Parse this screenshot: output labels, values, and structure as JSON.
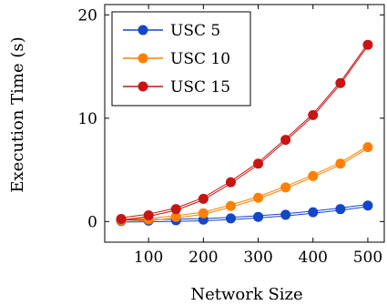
{
  "chart_data": {
    "type": "line",
    "title": "",
    "xlabel": "Network Size",
    "ylabel": "Execution Time (s)",
    "xlim": [
      20,
      530
    ],
    "ylim": [
      -2,
      21
    ],
    "xticks": [
      100,
      200,
      300,
      400,
      500
    ],
    "yticks": [
      0,
      10,
      20
    ],
    "grid": false,
    "legend_position": "top-left",
    "x": [
      50,
      100,
      150,
      200,
      250,
      300,
      350,
      400,
      450,
      500
    ],
    "series": [
      {
        "name": "USC 5",
        "color": "#1446c8",
        "values": [
          0.05,
          0.08,
          0.12,
          0.18,
          0.3,
          0.45,
          0.65,
          0.9,
          1.2,
          1.55
        ]
      },
      {
        "name": "USC 10",
        "color": "#ff8000",
        "values": [
          0.1,
          0.2,
          0.45,
          0.8,
          1.5,
          2.3,
          3.3,
          4.4,
          5.6,
          7.2
        ]
      },
      {
        "name": "USC 15",
        "color": "#c81414",
        "values": [
          0.25,
          0.6,
          1.2,
          2.2,
          3.8,
          5.6,
          7.9,
          10.3,
          13.4,
          17.1
        ]
      }
    ]
  }
}
